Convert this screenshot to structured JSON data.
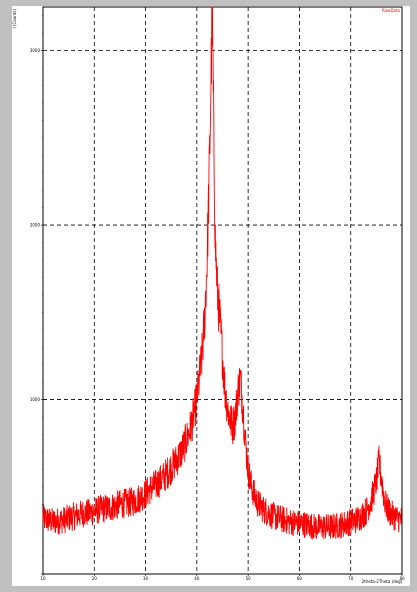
{
  "window": {
    "frame_color": "#c0c0c0",
    "plot_bg": "#ffffff"
  },
  "chart_data": {
    "type": "line",
    "legend_label": "RawData",
    "legend_placement": "top-right",
    "ylabel": "I (Counts)",
    "xlabel": "2theta-2Theta (deg)",
    "xlim": [
      10,
      80
    ],
    "ylim": [
      0,
      3250
    ],
    "grid": true,
    "grid_style": "dashed",
    "x_ticks": [
      10,
      20,
      30,
      40,
      50,
      60,
      70,
      80
    ],
    "y_ticks": [
      0,
      1000,
      2000,
      3000
    ],
    "x_tick_labels": [
      "10",
      "20",
      "30",
      "40",
      "50",
      "60",
      "70",
      "80"
    ],
    "y_tick_labels": [
      "",
      "1000",
      "2000",
      "3000"
    ],
    "series": [
      {
        "color": "#ff0000",
        "x": [
          10,
          11,
          12,
          13,
          14,
          15,
          16,
          17,
          18,
          19,
          20,
          21,
          22,
          23,
          24,
          25,
          26,
          27,
          28,
          29,
          30,
          31,
          32,
          33,
          34,
          35,
          36,
          37,
          38,
          39,
          40,
          41,
          41.5,
          42,
          42.5,
          43,
          43.3,
          43.6,
          44,
          44.5,
          45,
          45.5,
          46,
          46.5,
          47,
          47.5,
          48,
          48.5,
          49,
          49.5,
          50,
          50.5,
          51,
          51.5,
          52,
          53,
          54,
          55,
          56,
          57,
          58,
          59,
          60,
          61,
          62,
          63,
          64,
          65,
          66,
          67,
          68,
          69,
          70,
          71,
          72,
          73,
          74,
          75,
          75.5,
          76,
          76.5,
          77,
          77.5,
          78,
          79,
          80
        ],
        "y": [
          320,
          310,
          300,
          305,
          310,
          320,
          330,
          340,
          350,
          350,
          360,
          370,
          375,
          380,
          390,
          400,
          405,
          410,
          420,
          440,
          460,
          490,
          510,
          540,
          570,
          610,
          650,
          700,
          770,
          860,
          1000,
          1250,
          1450,
          1800,
          2400,
          3250,
          2500,
          1900,
          1620,
          1450,
          1250,
          1050,
          950,
          880,
          850,
          900,
          1050,
          1120,
          950,
          750,
          600,
          520,
          470,
          430,
          400,
          370,
          350,
          330,
          320,
          310,
          300,
          295,
          290,
          285,
          280,
          270,
          270,
          270,
          270,
          275,
          280,
          290,
          300,
          310,
          330,
          360,
          420,
          530,
          640,
          550,
          440,
          380,
          360,
          340,
          320,
          310
        ]
      }
    ]
  }
}
